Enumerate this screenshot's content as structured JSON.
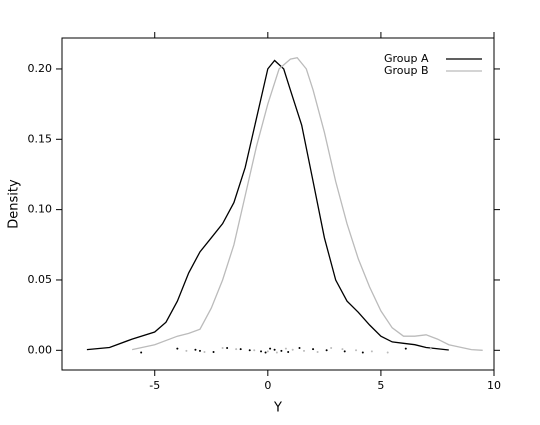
{
  "chart_data": {
    "type": "density",
    "xlabel": "Y",
    "ylabel": "Density",
    "xlim": [
      -9.1,
      10
    ],
    "ylim": [
      -0.014,
      0.222
    ],
    "xticks": [
      -5,
      0,
      5,
      10
    ],
    "yticks": [
      {
        "value": 0,
        "label": "0.00"
      },
      0.05,
      {
        "value": 0.1,
        "label": "0.10"
      },
      0.15,
      {
        "value": 0.2,
        "label": "0.20"
      }
    ],
    "legend": "top-right",
    "series": [
      {
        "name": "Group A",
        "color": "#000000",
        "x": [
          -8,
          -7,
          -6,
          -5,
          -4.5,
          -4,
          -3.5,
          -3,
          -2.5,
          -2,
          -1.5,
          -1,
          -0.5,
          0,
          0.3,
          0.7,
          1,
          1.5,
          2,
          2.5,
          3,
          3.5,
          4,
          4.5,
          5,
          5.5,
          6,
          6.5,
          7,
          8
        ],
        "values": [
          0.0005,
          0.002,
          0.008,
          0.013,
          0.02,
          0.035,
          0.055,
          0.07,
          0.08,
          0.09,
          0.105,
          0.13,
          0.165,
          0.2,
          0.206,
          0.2,
          0.185,
          0.16,
          0.12,
          0.08,
          0.05,
          0.035,
          0.027,
          0.018,
          0.01,
          0.006,
          0.005,
          0.004,
          0.002,
          0.0002
        ],
        "rug": [
          -5.6,
          -4,
          -3.2,
          -3,
          -2.4,
          -1.8,
          -1.2,
          -0.8,
          -0.3,
          -0.1,
          0.1,
          0.3,
          0.6,
          0.9,
          1.4,
          2,
          2.6,
          3.4,
          4.2,
          6.1
        ]
      },
      {
        "name": "Group B",
        "color": "#bbbbbb",
        "x": [
          -6,
          -5,
          -4,
          -3.5,
          -3,
          -2.5,
          -2,
          -1.5,
          -1,
          -0.5,
          0,
          0.5,
          1,
          1.3,
          1.7,
          2,
          2.5,
          3,
          3.5,
          4,
          4.5,
          5,
          5.5,
          6,
          6.5,
          7,
          7.5,
          8,
          9,
          9.5
        ],
        "values": [
          0.0005,
          0.004,
          0.01,
          0.012,
          0.015,
          0.03,
          0.05,
          0.075,
          0.11,
          0.145,
          0.175,
          0.2,
          0.207,
          0.208,
          0.2,
          0.185,
          0.155,
          0.12,
          0.09,
          0.065,
          0.045,
          0.028,
          0.016,
          0.01,
          0.01,
          0.011,
          0.008,
          0.004,
          0.0005,
          0
        ],
        "rug": [
          -3.6,
          -2.8,
          -2,
          -1.4,
          -0.6,
          0,
          0.4,
          0.8,
          1.1,
          1.6,
          2.2,
          2.8,
          3.3,
          3.9,
          4.6,
          5.3,
          7.2
        ]
      }
    ]
  }
}
